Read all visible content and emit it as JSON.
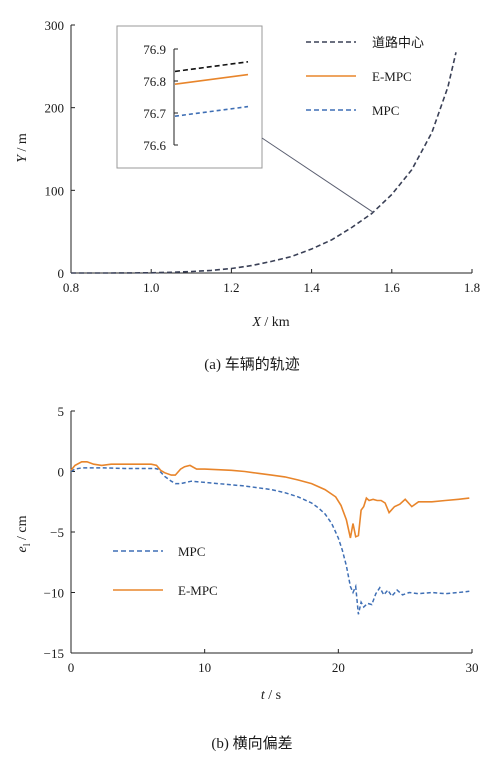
{
  "colors": {
    "road": "#3a4056",
    "empc": "#e8852b",
    "mpc": "#3f6fb5",
    "road_zoom": "#111111"
  },
  "chart_data": [
    {
      "type": "line",
      "caption": "(a)  车辆的轨迹",
      "xlabel_var": "X",
      "xlabel_unit": " / km",
      "ylabel_var": "Y",
      "ylabel_unit": " / m",
      "xlim": [
        0.8,
        1.8
      ],
      "ylim": [
        0,
        300
      ],
      "xticks": [
        0.8,
        1.0,
        1.2,
        1.4,
        1.6,
        1.8
      ],
      "xtick_labels": [
        "0.8",
        "1.0",
        "1.2",
        "1.4",
        "1.6",
        "1.8"
      ],
      "yticks": [
        0,
        100,
        200,
        300
      ],
      "ytick_labels": [
        "0",
        "100",
        "200",
        "300"
      ],
      "legend_position": "top-right",
      "series": [
        {
          "name": "道路中心",
          "style": "dashed",
          "color": "#3a4056",
          "x": [
            0.8,
            0.9,
            1.0,
            1.05,
            1.1,
            1.15,
            1.2,
            1.25,
            1.3,
            1.35,
            1.4,
            1.45,
            1.5,
            1.55,
            1.6,
            1.65,
            1.7,
            1.74,
            1.76
          ],
          "y": [
            0,
            0,
            0.3,
            0.8,
            1.8,
            3.2,
            5.5,
            9,
            14,
            20,
            29,
            40,
            55,
            72,
            95,
            125,
            170,
            225,
            267
          ]
        },
        {
          "name": "E-MPC",
          "style": "solid",
          "color": "#e8852b",
          "x": [],
          "y": []
        },
        {
          "name": "MPC",
          "style": "dashed",
          "color": "#3f6fb5",
          "x": [],
          "y": []
        }
      ],
      "inset": {
        "ylim": [
          76.6,
          76.9
        ],
        "yticks": [
          76.6,
          76.7,
          76.8,
          76.9
        ],
        "ytick_labels": [
          "76.6",
          "76.7",
          "76.8",
          "76.9"
        ],
        "zoom_point": [
          1.555,
          73
        ],
        "lines": [
          {
            "series": "道路中心",
            "y_start": 76.83,
            "y_end": 76.86
          },
          {
            "series": "E-MPC",
            "y_start": 76.79,
            "y_end": 76.82
          },
          {
            "series": "MPC",
            "y_start": 76.69,
            "y_end": 76.72
          }
        ]
      }
    },
    {
      "type": "line",
      "caption": "(b)  横向偏差",
      "xlabel_var": "t",
      "xlabel_unit": " / s",
      "ylabel_var": "e",
      "ylabel_sub": "l",
      "ylabel_unit": " / cm",
      "xlim": [
        0,
        30
      ],
      "ylim": [
        -15,
        5
      ],
      "xticks": [
        0,
        10,
        20,
        30
      ],
      "xtick_labels": [
        "0",
        "10",
        "20",
        "30"
      ],
      "yticks": [
        -15,
        -10,
        -5,
        0,
        5
      ],
      "ytick_labels": [
        "−15",
        "−10",
        "−5",
        "0",
        "5"
      ],
      "legend_position": "lower-left",
      "series": [
        {
          "name": "MPC",
          "style": "dashed",
          "color": "#3f6fb5",
          "x": [
            0,
            0.3,
            0.8,
            1.5,
            2.5,
            4,
            5.5,
            6.3,
            6.5,
            7,
            7.5,
            7.8,
            8.2,
            8.6,
            9,
            10,
            11,
            12,
            13,
            14,
            15,
            16,
            17,
            18,
            18.5,
            19,
            19.5,
            20,
            20.3,
            20.6,
            20.9,
            21.1,
            21.3,
            21.5,
            21.7,
            21.9,
            22.2,
            22.5,
            22.8,
            23.1,
            23.4,
            23.7,
            24.0,
            24.4,
            24.8,
            25.3,
            26,
            27,
            28,
            29,
            29.8
          ],
          "y": [
            0.0,
            0.2,
            0.3,
            0.3,
            0.3,
            0.25,
            0.25,
            0.25,
            0.2,
            -0.4,
            -0.8,
            -1.0,
            -1.0,
            -0.9,
            -0.8,
            -0.9,
            -1.0,
            -1.1,
            -1.2,
            -1.35,
            -1.5,
            -1.75,
            -2.1,
            -2.6,
            -3.0,
            -3.5,
            -4.3,
            -5.5,
            -6.5,
            -7.8,
            -9.5,
            -10.0,
            -9.5,
            -11.8,
            -10.8,
            -11.2,
            -10.9,
            -11.0,
            -10.1,
            -9.6,
            -10.2,
            -9.8,
            -10.3,
            -9.8,
            -10.2,
            -10.0,
            -10.1,
            -10.0,
            -10.1,
            -10.0,
            -9.9
          ]
        },
        {
          "name": "E-MPC",
          "style": "solid",
          "color": "#e8852b",
          "x": [
            0,
            0.3,
            0.8,
            1.2,
            1.7,
            2.3,
            3,
            4,
            5,
            6,
            6.4,
            6.7,
            7,
            7.5,
            7.8,
            8.2,
            8.5,
            8.9,
            9.4,
            10,
            11,
            12,
            13,
            14,
            15,
            16,
            17,
            18,
            19,
            19.8,
            20.2,
            20.6,
            20.9,
            21.1,
            21.3,
            21.5,
            21.7,
            21.9,
            22.1,
            22.3,
            22.6,
            22.9,
            23.2,
            23.5,
            23.8,
            24.2,
            24.6,
            25,
            25.5,
            26,
            27,
            28,
            29,
            29.8
          ],
          "y": [
            0.1,
            0.5,
            0.8,
            0.8,
            0.6,
            0.5,
            0.6,
            0.6,
            0.6,
            0.6,
            0.5,
            0.1,
            -0.1,
            -0.3,
            -0.3,
            0.2,
            0.4,
            0.5,
            0.2,
            0.2,
            0.15,
            0.1,
            0.0,
            -0.15,
            -0.3,
            -0.45,
            -0.7,
            -1.0,
            -1.5,
            -2.1,
            -2.8,
            -4.0,
            -5.5,
            -4.3,
            -5.4,
            -5.3,
            -3.2,
            -2.9,
            -2.2,
            -2.4,
            -2.3,
            -2.4,
            -2.4,
            -2.6,
            -3.4,
            -2.9,
            -2.7,
            -2.3,
            -2.9,
            -2.5,
            -2.5,
            -2.4,
            -2.3,
            -2.2
          ]
        }
      ]
    }
  ]
}
